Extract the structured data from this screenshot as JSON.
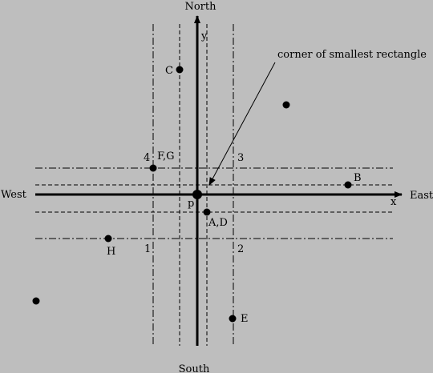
{
  "colors": {
    "background": "#bebebe",
    "ink": "#000000"
  },
  "compass": {
    "north": "North",
    "south": "South",
    "east": "East",
    "west": "West"
  },
  "axes": {
    "x": "x",
    "y": "y"
  },
  "annotation": {
    "text": "corner of smallest rectangle"
  },
  "points": {
    "p": "p",
    "a_d": "A,D",
    "b": "B",
    "c": "C",
    "e": "E",
    "f_g": "F,G",
    "h": "H"
  },
  "quadrants": {
    "q1": "1",
    "q2": "2",
    "q3": "3",
    "q4": "4"
  }
}
